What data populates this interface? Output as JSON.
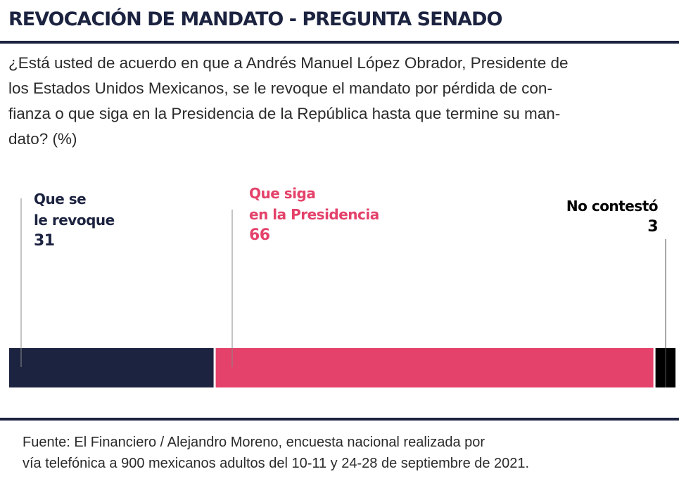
{
  "header": {
    "title": "REVOCACIÓN DE MANDATO - PREGUNTA SENADO",
    "question_lines": [
      "¿Está usted de acuerdo en que a Andrés Manuel López Obrador, Presidente de",
      "los Estados Unidos Mexicanos, se le revoque el mandato por pérdida de con-",
      "fianza o que siga en la Presidencia de la República hasta que termine su man-",
      "dato? (%)"
    ]
  },
  "chart_data": {
    "type": "bar",
    "orientation": "horizontal-stacked",
    "categories": [
      "Que se le revoque",
      "Que siga en la Presidencia",
      "No contestó"
    ],
    "values": [
      31,
      66,
      3
    ],
    "total": 100,
    "colors": [
      "#1c2340",
      "#e4426a",
      "#000000"
    ],
    "labels": [
      {
        "lines": [
          "Que se",
          "le revoque"
        ],
        "value": "31",
        "color": "#1c2340"
      },
      {
        "lines": [
          "Que siga",
          "en la Presidencia"
        ],
        "value": "66",
        "color": "#e4426a"
      },
      {
        "lines": [
          "No contestó"
        ],
        "value": "3",
        "color": "#000000"
      }
    ]
  },
  "footer": {
    "source_lines": [
      "Fuente: El Financiero / Alejandro Moreno, encuesta nacional realizada por",
      "vía telefónica a 900 mexicanos adultos del 10-11 y 24-28 de septiembre de 2021."
    ]
  }
}
